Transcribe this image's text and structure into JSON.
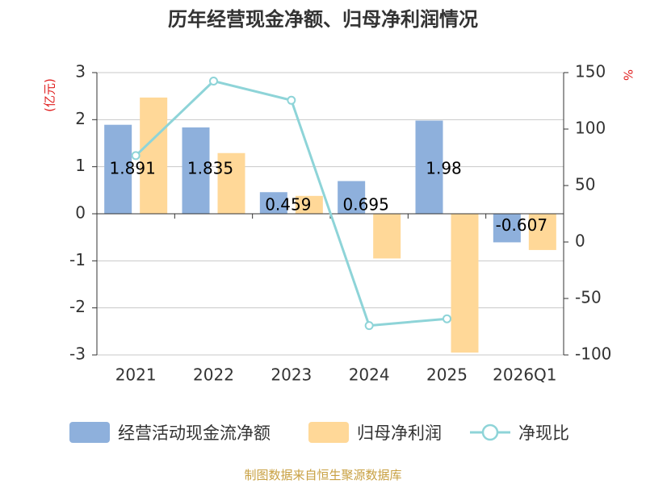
{
  "chart_data": {
    "type": "bar+line",
    "title": "历年经营现金净额、归母净利润情况",
    "categories": [
      "2021",
      "2022",
      "2023",
      "2024",
      "2025",
      "2026Q1"
    ],
    "series": [
      {
        "name": "经营活动现金流净额",
        "type": "bar",
        "axis": "left",
        "color": "#8eb0dc",
        "values": [
          1.891,
          1.835,
          0.459,
          0.695,
          1.98,
          -0.607
        ],
        "labels": [
          "1.891",
          "1.835",
          "0.459",
          "0.695",
          "1.98",
          "-0.607"
        ]
      },
      {
        "name": "归母净利润",
        "type": "bar",
        "axis": "left",
        "color": "#ffd898",
        "values": [
          2.47,
          1.29,
          0.38,
          -0.95,
          -2.95,
          -0.77
        ]
      },
      {
        "name": "净现比",
        "type": "line",
        "axis": "right",
        "color": "#8ed4d8",
        "values": [
          76.5,
          142.5,
          125.5,
          -74,
          -68,
          null
        ]
      }
    ],
    "y_left": {
      "label": "(亿元)",
      "min": -3,
      "max": 3,
      "ticks": [
        "3",
        "2",
        "1",
        "0",
        "-1",
        "-2",
        "-3"
      ]
    },
    "y_right": {
      "label": "%",
      "min": -100,
      "max": 150,
      "ticks": [
        "150",
        "100",
        "50",
        "0",
        "-50",
        "-100"
      ]
    },
    "gridlines": true,
    "legend_position": "bottom",
    "source": "制图数据来自恒生聚源数据库"
  }
}
